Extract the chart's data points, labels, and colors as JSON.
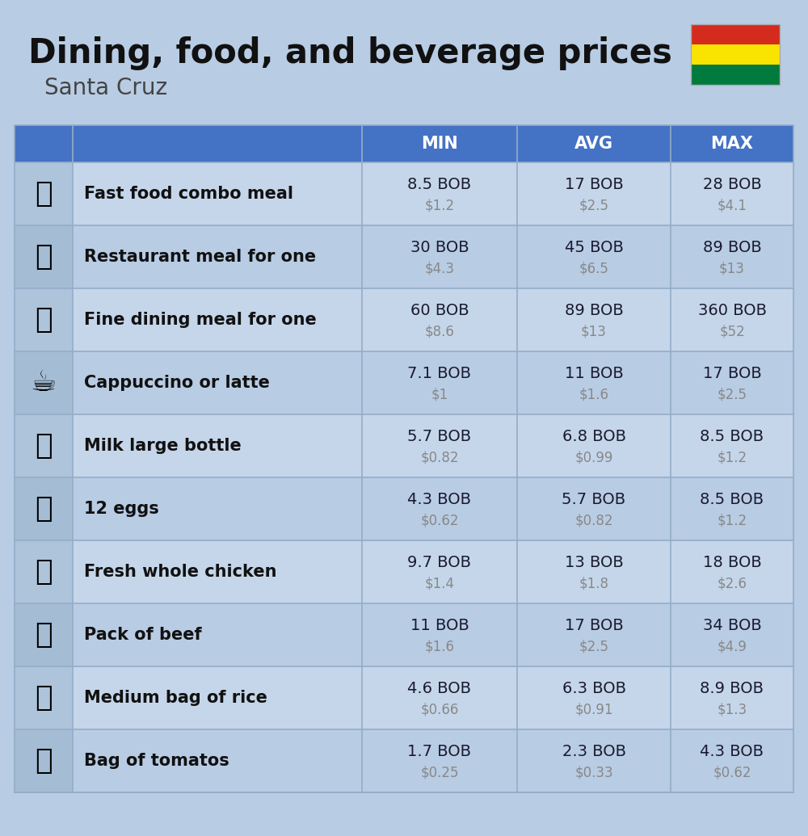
{
  "title": "Dining, food, and beverage prices",
  "subtitle": "Santa Cruz",
  "bg_color": "#b8cce4",
  "header_bg": "#4472c4",
  "header_text_color": "#ffffff",
  "row_bg_odd": "#c5d6ea",
  "row_bg_even": "#b8cce4",
  "icon_col_bg_odd": "#b0c8e0",
  "icon_col_bg_even": "#a8c0d8",
  "item_name_color": "#000000",
  "bob_color": "#1a1a2e",
  "usd_color": "#808080",
  "col_headers": [
    "MIN",
    "AVG",
    "MAX"
  ],
  "items": [
    {
      "name": "Fast food combo meal",
      "min_bob": "8.5 BOB",
      "min_usd": "$1.2",
      "avg_bob": "17 BOB",
      "avg_usd": "$2.5",
      "max_bob": "28 BOB",
      "max_usd": "$4.1"
    },
    {
      "name": "Restaurant meal for one",
      "min_bob": "30 BOB",
      "min_usd": "$4.3",
      "avg_bob": "45 BOB",
      "avg_usd": "$6.5",
      "max_bob": "89 BOB",
      "max_usd": "$13"
    },
    {
      "name": "Fine dining meal for one",
      "min_bob": "60 BOB",
      "min_usd": "$8.6",
      "avg_bob": "89 BOB",
      "avg_usd": "$13",
      "max_bob": "360 BOB",
      "max_usd": "$52"
    },
    {
      "name": "Cappuccino or latte",
      "min_bob": "7.1 BOB",
      "min_usd": "$1",
      "avg_bob": "11 BOB",
      "avg_usd": "$1.6",
      "max_bob": "17 BOB",
      "max_usd": "$2.5"
    },
    {
      "name": "Milk large bottle",
      "min_bob": "5.7 BOB",
      "min_usd": "$0.82",
      "avg_bob": "6.8 BOB",
      "avg_usd": "$0.99",
      "max_bob": "8.5 BOB",
      "max_usd": "$1.2"
    },
    {
      "name": "12 eggs",
      "min_bob": "4.3 BOB",
      "min_usd": "$0.62",
      "avg_bob": "5.7 BOB",
      "avg_usd": "$0.82",
      "max_bob": "8.5 BOB",
      "max_usd": "$1.2"
    },
    {
      "name": "Fresh whole chicken",
      "min_bob": "9.7 BOB",
      "min_usd": "$1.4",
      "avg_bob": "13 BOB",
      "avg_usd": "$1.8",
      "max_bob": "18 BOB",
      "max_usd": "$2.6"
    },
    {
      "name": "Pack of beef",
      "min_bob": "11 BOB",
      "min_usd": "$1.6",
      "avg_bob": "17 BOB",
      "avg_usd": "$2.5",
      "max_bob": "34 BOB",
      "max_usd": "$4.9"
    },
    {
      "name": "Medium bag of rice",
      "min_bob": "4.6 BOB",
      "min_usd": "$0.66",
      "avg_bob": "6.3 BOB",
      "avg_usd": "$0.91",
      "max_bob": "8.9 BOB",
      "max_usd": "$1.3"
    },
    {
      "name": "Bag of tomatos",
      "min_bob": "1.7 BOB",
      "min_usd": "$0.25",
      "avg_bob": "2.3 BOB",
      "avg_usd": "$0.33",
      "max_bob": "4.3 BOB",
      "max_usd": "$0.62"
    }
  ]
}
